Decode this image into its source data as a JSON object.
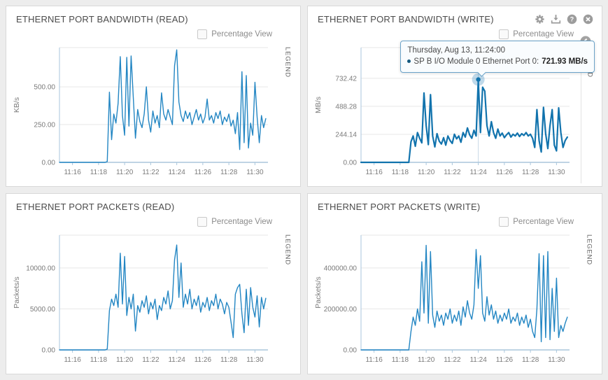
{
  "panels": [
    {
      "title": "ETHERNET PORT BANDWIDTH (READ)",
      "percentage_view": "Percentage View",
      "legend": "LEGEND"
    },
    {
      "title": "ETHERNET PORT BANDWIDTH (WRITE)",
      "percentage_view": "Percentage View",
      "legend": "LEGEND"
    },
    {
      "title": "ETHERNET PORT PACKETS (READ)",
      "percentage_view": "Percentage View",
      "legend": "LEGEND"
    },
    {
      "title": "ETHERNET PORT PACKETS (WRITE)",
      "percentage_view": "Percentage View",
      "legend": "LEGEND"
    }
  ],
  "panel_actions": {
    "icons": [
      "settings",
      "export",
      "help",
      "close"
    ],
    "collapse_icon": "chevron-left"
  },
  "tooltip": {
    "date": "Thursday, Aug 13, 11:24:00",
    "series": "SP B I/O Module 0 Ethernet Port 0:",
    "value": "721.93 MB/s"
  },
  "x_axis": {
    "labels": [
      "11:16",
      "11:18",
      "11:20",
      "11:22",
      "11:24",
      "11:26",
      "11:28",
      "11:30"
    ],
    "minutes": [
      1,
      3,
      5,
      7,
      9,
      11,
      13,
      15
    ],
    "domain_minutes": [
      0,
      16
    ]
  },
  "colors": {
    "line": "#2386c3",
    "line_bold": "#1173ad",
    "axis": "#aac6dc",
    "grid": "#e7e7e7",
    "crosshair": "#c9d9e6",
    "tick_text": "#7a7a7a",
    "halo": "rgba(44,130,186,0.30)",
    "dot": "#1173ad",
    "icon_gray": "#9c9c9c",
    "tooltip_border": "#6ba3c9"
  },
  "chart_data": [
    {
      "type": "line",
      "title": "ETHERNET PORT BANDWIDTH (READ)",
      "ylabel": "KB/s",
      "y_render_max": 760,
      "y_ticks": [
        {
          "value": 0,
          "label": "0.00"
        },
        {
          "value": 250,
          "label": "250.00"
        },
        {
          "value": 500,
          "label": "500.00"
        }
      ],
      "interval_seconds": 10,
      "start_minute": 0,
      "series": [
        {
          "color": "#2386c3",
          "values": [
            0,
            0,
            0,
            0,
            0,
            0,
            0,
            0,
            0,
            0,
            0,
            0,
            0,
            0,
            0,
            0,
            0,
            0,
            0,
            0,
            0,
            0,
            5,
            465,
            150,
            320,
            260,
            390,
            700,
            310,
            180,
            695,
            240,
            705,
            430,
            160,
            350,
            270,
            230,
            320,
            500,
            280,
            200,
            340,
            260,
            310,
            230,
            460,
            320,
            280,
            350,
            300,
            250,
            640,
            745,
            400,
            310,
            270,
            340,
            290,
            330,
            250,
            300,
            350,
            280,
            320,
            260,
            300,
            420,
            280,
            310,
            260,
            330,
            290,
            340,
            250,
            300,
            270,
            320,
            240,
            280,
            190,
            330,
            85,
            600,
            130,
            575,
            95,
            260,
            180,
            530,
            300,
            130,
            310,
            230,
            290
          ]
        }
      ]
    },
    {
      "type": "line",
      "title": "ETHERNET PORT BANDWIDTH (WRITE)",
      "ylabel": "MB/s",
      "y_render_max": 1000,
      "y_ticks": [
        {
          "value": 0,
          "label": "0.00"
        },
        {
          "value": 244.14,
          "label": "244.14"
        },
        {
          "value": 488.28,
          "label": "488.28"
        },
        {
          "value": 732.42,
          "label": "732.42"
        }
      ],
      "interval_seconds": 10,
      "start_minute": 0,
      "highlight": {
        "minute": 9,
        "value": 721.93
      },
      "series": [
        {
          "name": "SP B I/O Module 0 Ethernet Port 0",
          "color": "#1173ad",
          "values": [
            0,
            0,
            0,
            0,
            0,
            0,
            0,
            0,
            0,
            0,
            0,
            0,
            0,
            0,
            0,
            0,
            0,
            0,
            0,
            0,
            0,
            0,
            0,
            180,
            230,
            140,
            260,
            210,
            170,
            605,
            320,
            155,
            590,
            230,
            135,
            250,
            185,
            160,
            215,
            150,
            230,
            190,
            165,
            245,
            205,
            230,
            175,
            260,
            220,
            300,
            240,
            210,
            280,
            230,
            721.93,
            260,
            655,
            620,
            320,
            230,
            355,
            260,
            210,
            290,
            230,
            255,
            215,
            240,
            260,
            220,
            245,
            230,
            255,
            225,
            250,
            235,
            260,
            230,
            245,
            210,
            130,
            460,
            190,
            90,
            480,
            250,
            120,
            320,
            460,
            150,
            100,
            475,
            260,
            130,
            190,
            220
          ]
        }
      ]
    },
    {
      "type": "line",
      "title": "ETHERNET PORT PACKETS (READ)",
      "ylabel": "Packets/s",
      "y_render_max": 14000,
      "y_ticks": [
        {
          "value": 0,
          "label": "0.00"
        },
        {
          "value": 5000,
          "label": "5000.00"
        },
        {
          "value": 10000,
          "label": "10000.00"
        }
      ],
      "interval_seconds": 10,
      "start_minute": 0,
      "series": [
        {
          "color": "#2386c3",
          "values": [
            0,
            0,
            0,
            0,
            0,
            0,
            0,
            0,
            0,
            0,
            0,
            0,
            0,
            0,
            0,
            0,
            0,
            0,
            0,
            0,
            0,
            0,
            100,
            4800,
            6200,
            5400,
            6800,
            5200,
            11800,
            5600,
            11400,
            4200,
            6400,
            5000,
            6800,
            2300,
            5400,
            4600,
            6000,
            5200,
            6600,
            4400,
            5800,
            5000,
            6200,
            3700,
            5400,
            4800,
            6400,
            5600,
            7200,
            5000,
            6000,
            11000,
            12800,
            6400,
            10600,
            5200,
            6800,
            5600,
            7400,
            5000,
            6200,
            5400,
            6600,
            4600,
            5800,
            5200,
            6400,
            4800,
            6000,
            5400,
            6800,
            5000,
            6200,
            5600,
            4400,
            5800,
            5200,
            3400,
            1500,
            6800,
            7600,
            8000,
            4400,
            2100,
            7400,
            3000,
            7600,
            5200,
            4000,
            6600,
            2800,
            6400,
            5000,
            6300
          ]
        }
      ]
    },
    {
      "type": "line",
      "title": "ETHERNET PORT PACKETS (WRITE)",
      "ylabel": "Packets/s",
      "y_render_max": 560000,
      "y_ticks": [
        {
          "value": 0,
          "label": "0.00"
        },
        {
          "value": 200000,
          "label": "200000.00"
        },
        {
          "value": 400000,
          "label": "400000.00"
        }
      ],
      "interval_seconds": 10,
      "start_minute": 0,
      "series": [
        {
          "color": "#2386c3",
          "values": [
            0,
            0,
            0,
            0,
            0,
            0,
            0,
            0,
            0,
            0,
            0,
            0,
            0,
            0,
            0,
            0,
            0,
            0,
            0,
            0,
            0,
            0,
            0,
            90000,
            160000,
            120000,
            200000,
            140000,
            430000,
            180000,
            510000,
            130000,
            480000,
            170000,
            110000,
            190000,
            140000,
            170000,
            120000,
            180000,
            150000,
            200000,
            130000,
            170000,
            140000,
            190000,
            120000,
            210000,
            160000,
            240000,
            180000,
            150000,
            220000,
            490000,
            300000,
            460000,
            180000,
            140000,
            260000,
            170000,
            220000,
            150000,
            190000,
            130000,
            170000,
            140000,
            180000,
            150000,
            200000,
            130000,
            160000,
            140000,
            180000,
            120000,
            160000,
            130000,
            170000,
            110000,
            150000,
            90000,
            60000,
            200000,
            470000,
            40000,
            460000,
            60000,
            480000,
            50000,
            300000,
            90000,
            350000,
            60000,
            120000,
            90000,
            130000,
            160000
          ]
        }
      ]
    }
  ]
}
